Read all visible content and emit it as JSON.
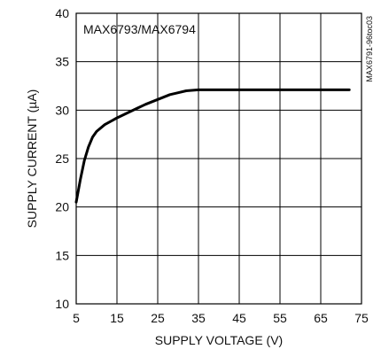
{
  "chart_data": {
    "type": "line",
    "title": "",
    "annotation": "MAX6793/MAX6794",
    "side_label": "MAX6791-96toc03",
    "xlabel": "SUPPLY VOLTAGE (V)",
    "ylabel": "SUPPLY CURRENT (µA)",
    "xlim": [
      5,
      75
    ],
    "ylim": [
      10,
      40
    ],
    "xticks": [
      5,
      15,
      25,
      35,
      45,
      55,
      65,
      75
    ],
    "yticks": [
      10,
      15,
      20,
      25,
      30,
      35,
      40
    ],
    "grid": true,
    "series": [
      {
        "values": [
          [
            5.0,
            20.5
          ],
          [
            6.0,
            22.8
          ],
          [
            7.0,
            24.8
          ],
          [
            8.0,
            26.2
          ],
          [
            9.0,
            27.2
          ],
          [
            10.0,
            27.8
          ],
          [
            12.0,
            28.5
          ],
          [
            15.0,
            29.2
          ],
          [
            18.0,
            29.8
          ],
          [
            20.0,
            30.2
          ],
          [
            22.0,
            30.6
          ],
          [
            25.0,
            31.1
          ],
          [
            28.0,
            31.6
          ],
          [
            30.0,
            31.8
          ],
          [
            32.0,
            32.0
          ],
          [
            35.0,
            32.1
          ],
          [
            40.0,
            32.1
          ],
          [
            45.0,
            32.1
          ],
          [
            50.0,
            32.1
          ],
          [
            55.0,
            32.1
          ],
          [
            60.0,
            32.1
          ],
          [
            65.0,
            32.1
          ],
          [
            70.0,
            32.1
          ],
          [
            72.0,
            32.1
          ]
        ]
      }
    ]
  }
}
